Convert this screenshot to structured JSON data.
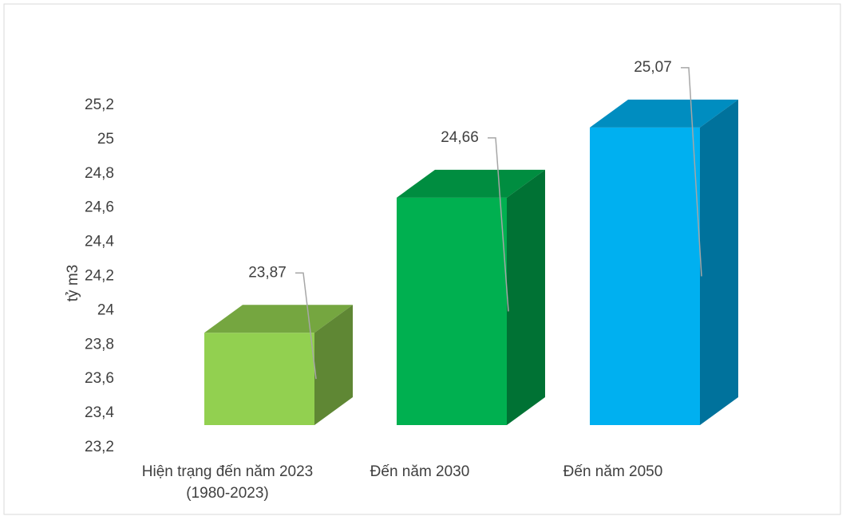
{
  "chart_data": {
    "type": "bar3d",
    "y_label": "tỷ m3",
    "categories": [
      "Hiện trạng đến năm 2023 (1980-2023)",
      "Đến năm 2030",
      "Đến năm 2050"
    ],
    "values": [
      23.87,
      24.66,
      25.07
    ],
    "value_labels": [
      "23,87",
      "24,66",
      "25,07"
    ],
    "colors": [
      "#92d050",
      "#00b050",
      "#00b0f0"
    ],
    "ylim": [
      23.2,
      25.2
    ],
    "yticks": [
      {
        "value": 23.2,
        "label": "23,2"
      },
      {
        "value": 23.4,
        "label": "23,4"
      },
      {
        "value": 23.6,
        "label": "23,6"
      },
      {
        "value": 23.8,
        "label": "23,8"
      },
      24,
      {
        "value": 24.2,
        "label": "24,2"
      },
      {
        "value": 24.4,
        "label": "24,4"
      },
      {
        "value": 24.6,
        "label": "24,6"
      },
      {
        "value": 24.8,
        "label": "24,8"
      },
      25,
      {
        "value": 25.2,
        "label": "25,2"
      }
    ],
    "grid": false
  }
}
